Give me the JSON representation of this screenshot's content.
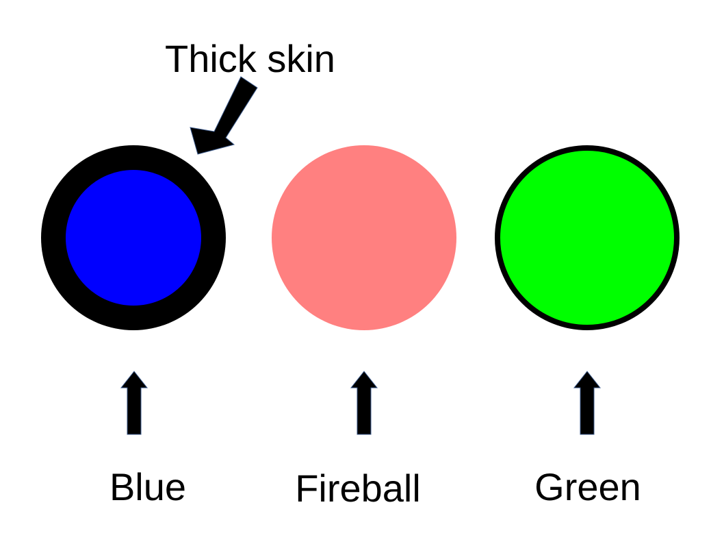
{
  "annotation": {
    "text": "Thick skin"
  },
  "items": [
    {
      "label": "Blue",
      "fill": "#0000ff",
      "border": "thick"
    },
    {
      "label": "Fireball",
      "fill": "#ff8080",
      "border": "none"
    },
    {
      "label": "Green",
      "fill": "#00ff00",
      "border": "thin"
    }
  ],
  "colors": {
    "outline": "#000000",
    "arrow": "#000000",
    "arrow_edge": "#3b5a8c"
  },
  "icons": {
    "pointer": "arrow-down-left-icon",
    "item_pointer": "arrow-up-icon"
  }
}
